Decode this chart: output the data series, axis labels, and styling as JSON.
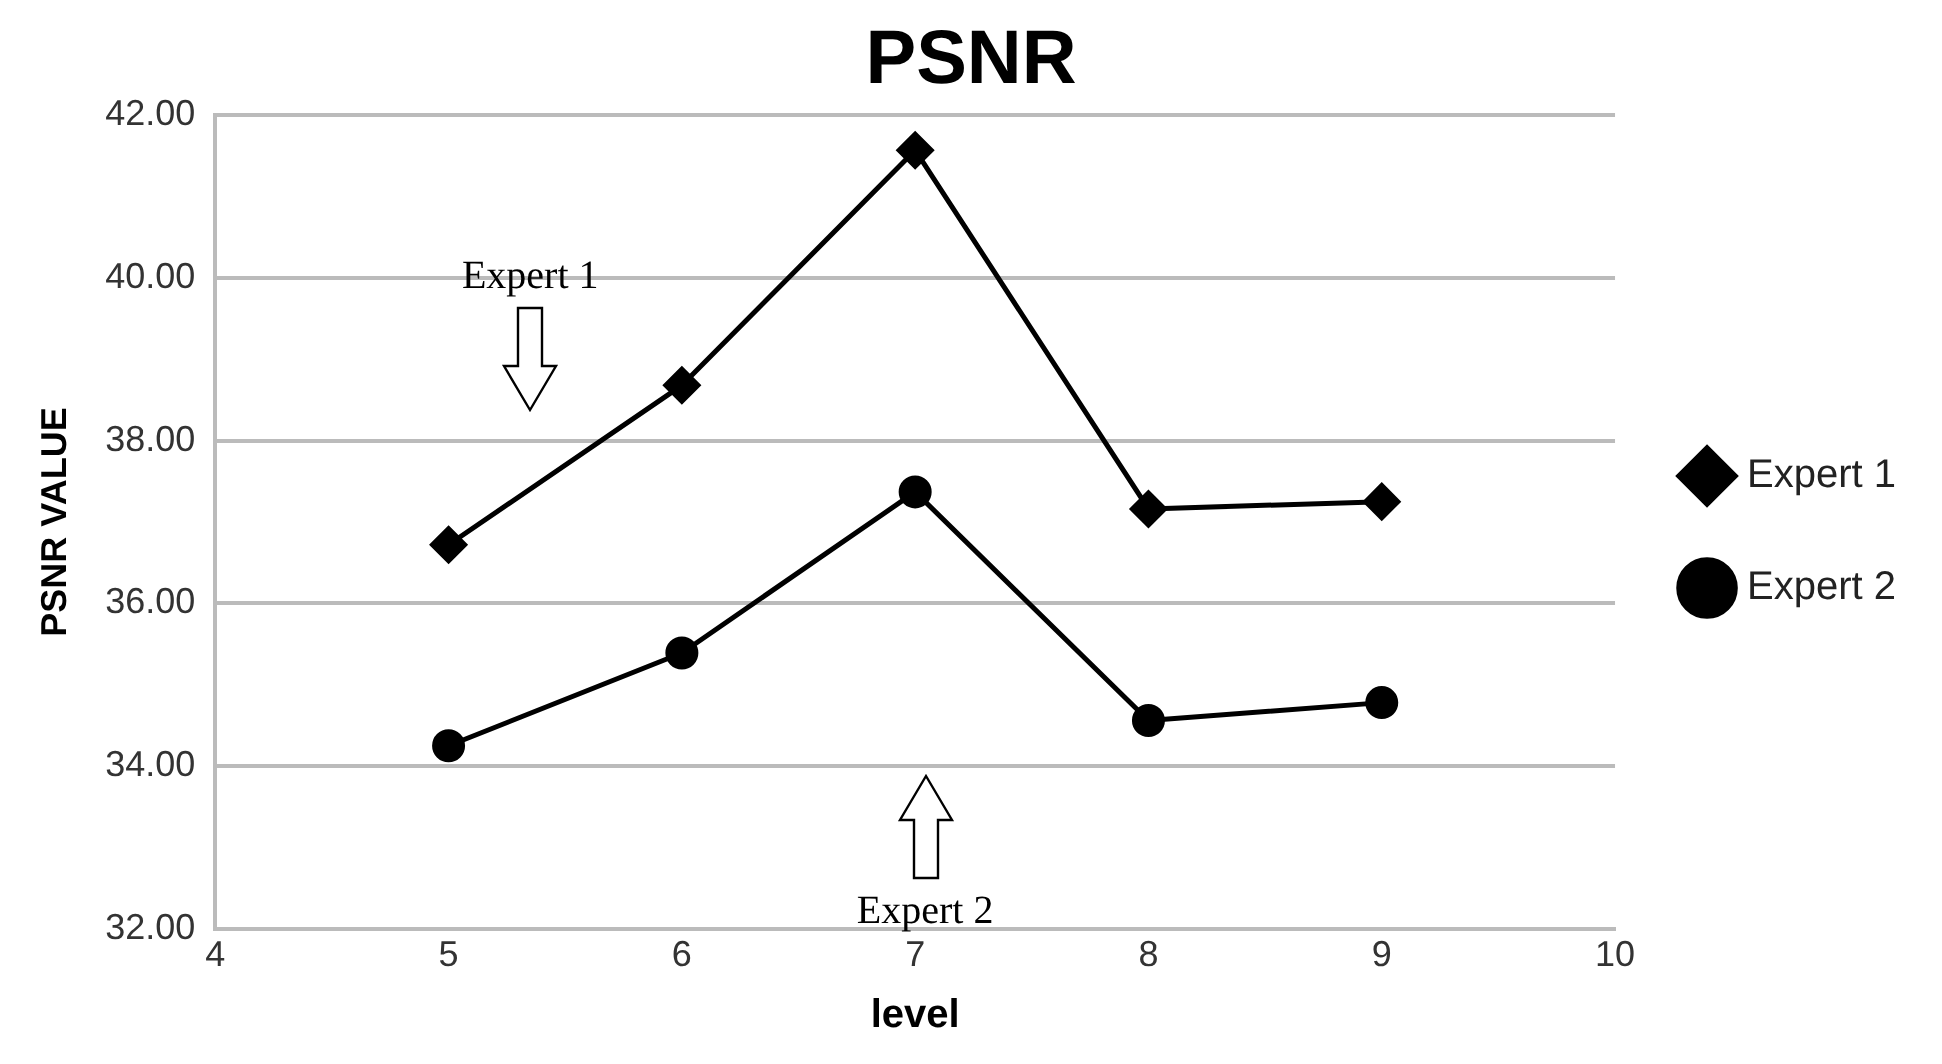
{
  "chart_data": {
    "type": "line",
    "title": "PSNR",
    "xlabel": "level",
    "ylabel": "PSNR VALUE",
    "x": [
      5,
      6,
      7,
      8,
      9
    ],
    "series": [
      {
        "name": "Expert 1",
        "color": "#000000",
        "marker": "diamond",
        "values": [
          36.72,
          38.68,
          41.57,
          37.16,
          37.25
        ]
      },
      {
        "name": "Expert 2",
        "color": "#000000",
        "marker": "circle",
        "values": [
          34.25,
          35.39,
          37.37,
          34.56,
          34.78
        ]
      }
    ],
    "annotations": [
      "Expert 1",
      "Expert 2"
    ],
    "xlim": [
      4,
      10
    ],
    "xticks": [
      4,
      5,
      6,
      7,
      8,
      9,
      10
    ],
    "ylim": [
      32,
      42
    ],
    "yticks": [
      {
        "value": 32,
        "label": "32.00"
      },
      {
        "value": 34,
        "label": "34.00"
      },
      {
        "value": 36,
        "label": "36.00"
      },
      {
        "value": 38,
        "label": "38.00"
      },
      {
        "value": 40,
        "label": "40.00"
      },
      {
        "value": 42,
        "label": "42.00"
      }
    ],
    "grid": "y",
    "legend": "right",
    "line_style": "solid"
  }
}
